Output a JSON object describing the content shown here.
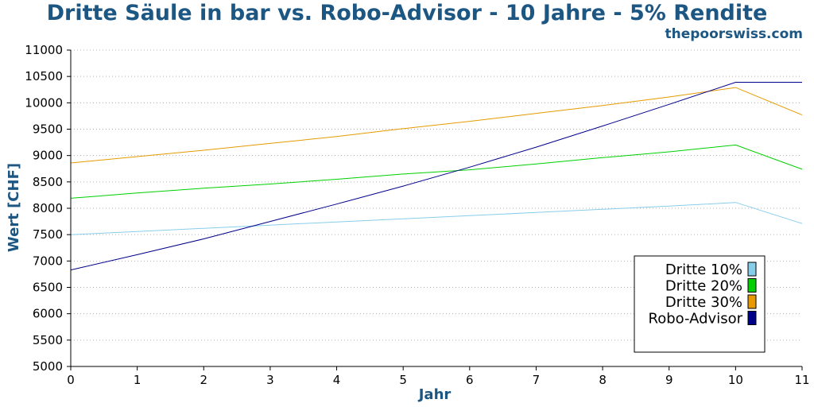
{
  "chart_data": {
    "type": "line",
    "title": "Dritte Säule in bar vs. Robo-Advisor - 10 Jahre - 5% Rendite",
    "subtitle": "thepoorswiss.com",
    "xlabel": "Jahr",
    "ylabel": "Wert [CHF]",
    "xlim": [
      0,
      11
    ],
    "ylim": [
      5000,
      11000
    ],
    "xticks": [
      "0",
      "1",
      "2",
      "3",
      "4",
      "5",
      "6",
      "7",
      "8",
      "9",
      "10",
      "11"
    ],
    "yticks": [
      "5000",
      "5500",
      "6000",
      "6500",
      "7000",
      "7500",
      "8000",
      "8500",
      "9000",
      "9500",
      "10000",
      "10500",
      "11000"
    ],
    "grid": "horizontal-dotted",
    "legend": "bottom-right",
    "x": [
      0,
      1,
      2,
      3,
      4,
      5,
      6,
      7,
      8,
      9,
      10,
      11
    ],
    "series": [
      {
        "name": "Dritte 10%",
        "color": "#87ceeb",
        "values": [
          7500,
          7560,
          7620,
          7680,
          7740,
          7800,
          7860,
          7920,
          7980,
          8040,
          8110,
          7710
        ]
      },
      {
        "name": "Dritte 20%",
        "color": "#00d000",
        "values": [
          8190,
          8290,
          8380,
          8460,
          8550,
          8650,
          8730,
          8840,
          8960,
          9070,
          9200,
          8740
        ]
      },
      {
        "name": "Dritte 30%",
        "color": "#e69a00",
        "values": [
          8860,
          8980,
          9100,
          9230,
          9360,
          9510,
          9650,
          9800,
          9950,
          10110,
          10290,
          9770
        ]
      },
      {
        "name": "Robo-Advisor",
        "color": "#00008b",
        "values": [
          6830,
          7120,
          7420,
          7750,
          8080,
          8420,
          8780,
          9160,
          9560,
          9970,
          10390,
          10390
        ]
      }
    ]
  }
}
